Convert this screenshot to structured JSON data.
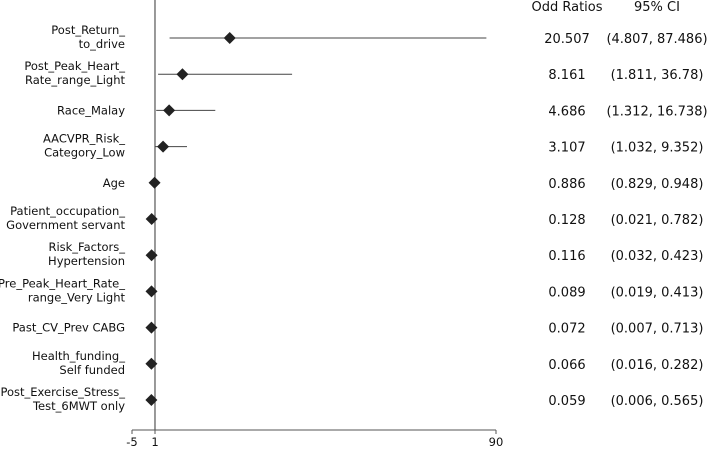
{
  "chart_data": {
    "type": "forest",
    "title": "",
    "headers": {
      "odds_ratio": "Odd Ratios",
      "ci": "95% CI"
    },
    "x_ticks": [
      "-5",
      "1",
      "90"
    ],
    "xlim": [
      -5,
      90
    ],
    "reference_line": 1,
    "rows": [
      {
        "label": [
          "Post_Return_",
          "to_drive"
        ],
        "or": 20.507,
        "lo": 4.807,
        "hi": 87.486,
        "or_text": "20.507",
        "ci_text": "(4.807, 87.486)"
      },
      {
        "label": [
          "Post_Peak_Heart_",
          "Rate_range_Light"
        ],
        "or": 8.161,
        "lo": 1.811,
        "hi": 36.78,
        "or_text": "8.161",
        "ci_text": "(1.811, 36.78)"
      },
      {
        "label": [
          "Race_Malay"
        ],
        "or": 4.686,
        "lo": 1.312,
        "hi": 16.738,
        "or_text": "4.686",
        "ci_text": "(1.312, 16.738)"
      },
      {
        "label": [
          "AACVPR_Risk_",
          "Category_Low"
        ],
        "or": 3.107,
        "lo": 1.032,
        "hi": 9.352,
        "or_text": "3.107",
        "ci_text": "(1.032, 9.352)"
      },
      {
        "label": [
          "Age"
        ],
        "or": 0.886,
        "lo": 0.829,
        "hi": 0.948,
        "or_text": "0.886",
        "ci_text": "(0.829, 0.948)"
      },
      {
        "label": [
          "Patient_occupation_",
          "Government servant"
        ],
        "or": 0.128,
        "lo": 0.021,
        "hi": 0.782,
        "or_text": "0.128",
        "ci_text": "(0.021, 0.782)"
      },
      {
        "label": [
          "Risk_Factors_",
          "Hypertension"
        ],
        "or": 0.116,
        "lo": 0.032,
        "hi": 0.423,
        "or_text": "0.116",
        "ci_text": "(0.032, 0.423)"
      },
      {
        "label": [
          "Pre_Peak_Heart_Rate_",
          "range_Very Light"
        ],
        "or": 0.089,
        "lo": 0.019,
        "hi": 0.413,
        "or_text": "0.089",
        "ci_text": "(0.019, 0.413)"
      },
      {
        "label": [
          "Past_CV_Prev CABG"
        ],
        "or": 0.072,
        "lo": 0.007,
        "hi": 0.713,
        "or_text": "0.072",
        "ci_text": "(0.007, 0.713)"
      },
      {
        "label": [
          "Health_funding_",
          "Self funded"
        ],
        "or": 0.066,
        "lo": 0.016,
        "hi": 0.282,
        "or_text": "0.066",
        "ci_text": "(0.016, 0.282)"
      },
      {
        "label": [
          "Post_Exercise_Stress_",
          "Test_6MWT only"
        ],
        "or": 0.059,
        "lo": 0.006,
        "hi": 0.565,
        "or_text": "0.059",
        "ci_text": "(0.006, 0.565)"
      }
    ],
    "colors": {
      "marker": "#222222",
      "line": "#444444",
      "axis": "#555555"
    }
  }
}
